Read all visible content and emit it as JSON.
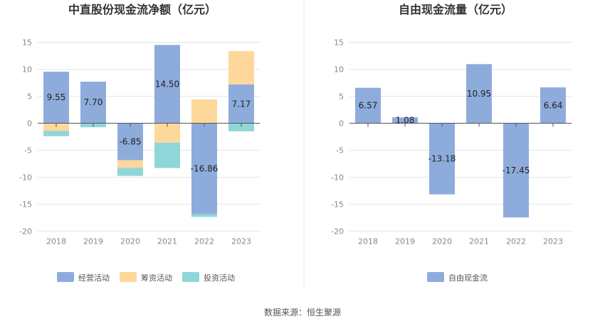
{
  "source_note": "数据来源：恒生聚源",
  "colors": {
    "operating": "#8eacdb",
    "financing": "#fed89b",
    "investing": "#8fd6d8",
    "fcf": "#8eacdb",
    "grid": "#e6e6e6",
    "axis": "#555555",
    "divider": "#e9e9e9"
  },
  "chart_data": [
    {
      "type": "bar",
      "stacked": true,
      "title": "中直股份现金流净额（亿元）",
      "categories": [
        "2018",
        "2019",
        "2020",
        "2021",
        "2022",
        "2023"
      ],
      "ylim": [
        -20,
        15
      ],
      "yticks": [
        15,
        10,
        5,
        0,
        -5,
        -10,
        -15,
        -20
      ],
      "grid": true,
      "legend_position": "bottom",
      "series": [
        {
          "name": "经营活动",
          "values": [
            9.55,
            7.7,
            -6.85,
            14.5,
            -16.86,
            7.17
          ],
          "labeled": true
        },
        {
          "name": "筹资活动",
          "values": [
            -1.4,
            -0.05,
            -1.4,
            -3.6,
            4.4,
            6.2
          ],
          "labeled": false
        },
        {
          "name": "投资活动",
          "values": [
            -1.0,
            -0.7,
            -1.5,
            -4.7,
            -0.5,
            -1.5
          ],
          "labeled": false
        }
      ]
    },
    {
      "type": "bar",
      "stacked": false,
      "title": "自由现金流量（亿元）",
      "categories": [
        "2018",
        "2019",
        "2020",
        "2021",
        "2022",
        "2023"
      ],
      "ylim": [
        -20,
        15
      ],
      "yticks": [
        15,
        10,
        5,
        0,
        -5,
        -10,
        -15,
        -20
      ],
      "grid": true,
      "legend_position": "bottom",
      "series": [
        {
          "name": "自由现金流",
          "values": [
            6.57,
            1.08,
            -13.18,
            10.95,
            -17.45,
            6.64
          ],
          "labeled": true
        }
      ]
    }
  ]
}
